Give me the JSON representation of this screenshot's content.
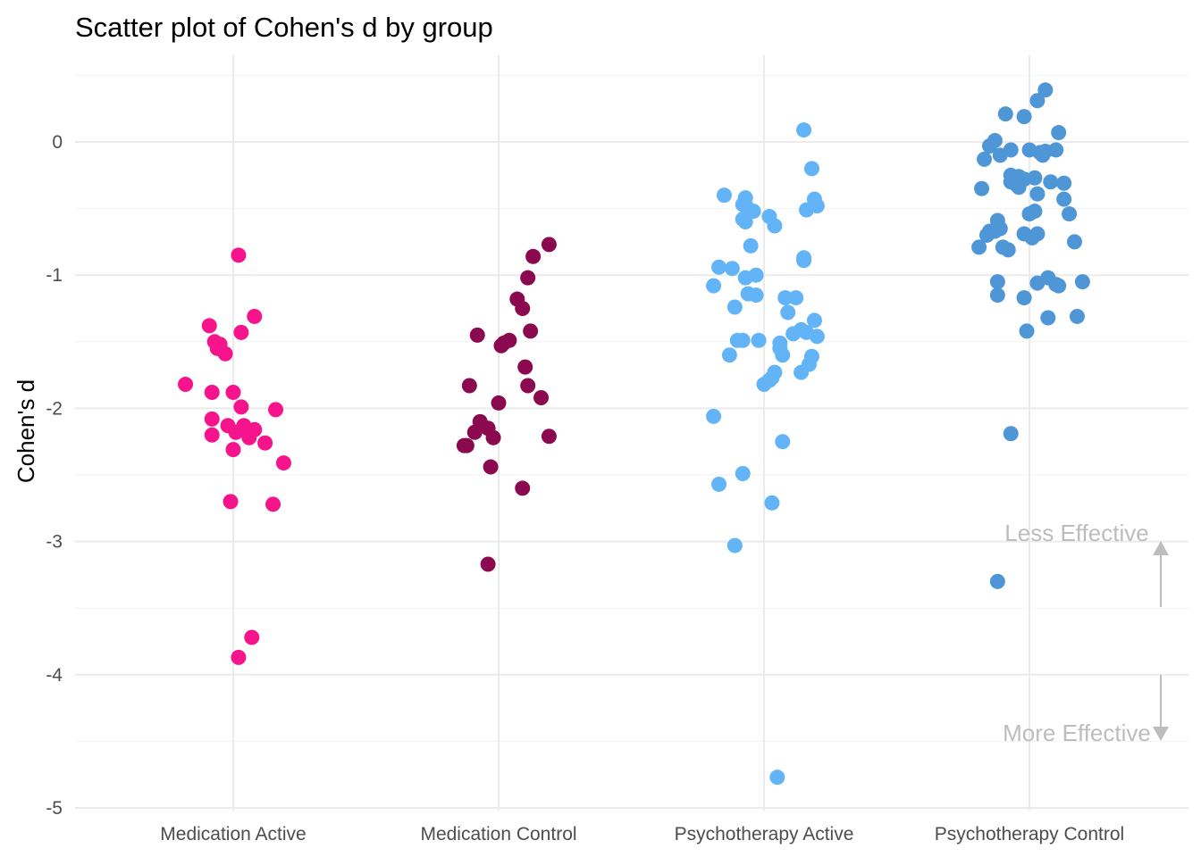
{
  "chart_data": {
    "type": "scatter",
    "title": "Scatter plot of Cohen's d by group",
    "xlabel": "",
    "ylabel": "Cohen's d",
    "ylim": [
      -5,
      0.5
    ],
    "yticks": [
      -5,
      -4,
      -3,
      -2,
      -1,
      0
    ],
    "grid": true,
    "categories": [
      "Medication Active",
      "Medication Control",
      "Psychotherapy Active",
      "Psychotherapy Control"
    ],
    "series": [
      {
        "category": "Medication Active",
        "color": "#f5148c",
        "points": [
          {
            "x": 0.02,
            "y": -0.85
          },
          {
            "x": -0.09,
            "y": -1.38
          },
          {
            "x": 0.08,
            "y": -1.31
          },
          {
            "x": 0.03,
            "y": -1.43
          },
          {
            "x": -0.07,
            "y": -1.5
          },
          {
            "x": -0.05,
            "y": -1.52
          },
          {
            "x": -0.06,
            "y": -1.55
          },
          {
            "x": -0.03,
            "y": -1.59
          },
          {
            "x": -0.18,
            "y": -1.82
          },
          {
            "x": -0.08,
            "y": -1.88
          },
          {
            "x": 0.0,
            "y": -1.88
          },
          {
            "x": 0.16,
            "y": -2.01
          },
          {
            "x": 0.03,
            "y": -1.99
          },
          {
            "x": -0.08,
            "y": -2.08
          },
          {
            "x": -0.02,
            "y": -2.13
          },
          {
            "x": 0.04,
            "y": -2.13
          },
          {
            "x": 0.08,
            "y": -2.16
          },
          {
            "x": 0.01,
            "y": -2.18
          },
          {
            "x": -0.08,
            "y": -2.2
          },
          {
            "x": 0.06,
            "y": -2.22
          },
          {
            "x": 0.12,
            "y": -2.26
          },
          {
            "x": 0.0,
            "y": -2.31
          },
          {
            "x": 0.19,
            "y": -2.41
          },
          {
            "x": -0.01,
            "y": -2.7
          },
          {
            "x": 0.15,
            "y": -2.72
          },
          {
            "x": 0.07,
            "y": -3.72
          },
          {
            "x": 0.02,
            "y": -3.87
          }
        ]
      },
      {
        "category": "Medication Control",
        "color": "#8b0a4f",
        "points": [
          {
            "x": 0.19,
            "y": -0.77
          },
          {
            "x": 0.13,
            "y": -0.86
          },
          {
            "x": 0.11,
            "y": -1.02
          },
          {
            "x": 0.07,
            "y": -1.18
          },
          {
            "x": 0.09,
            "y": -1.25
          },
          {
            "x": 0.12,
            "y": -1.42
          },
          {
            "x": -0.08,
            "y": -1.45
          },
          {
            "x": 0.04,
            "y": -1.49
          },
          {
            "x": 0.02,
            "y": -1.51
          },
          {
            "x": 0.01,
            "y": -1.53
          },
          {
            "x": 0.1,
            "y": -1.69
          },
          {
            "x": -0.11,
            "y": -1.83
          },
          {
            "x": 0.11,
            "y": -1.83
          },
          {
            "x": 0.16,
            "y": -1.92
          },
          {
            "x": 0.0,
            "y": -1.96
          },
          {
            "x": -0.07,
            "y": -2.1
          },
          {
            "x": -0.04,
            "y": -2.15
          },
          {
            "x": -0.09,
            "y": -2.18
          },
          {
            "x": -0.02,
            "y": -2.22
          },
          {
            "x": 0.19,
            "y": -2.21
          },
          {
            "x": -0.13,
            "y": -2.28
          },
          {
            "x": -0.12,
            "y": -2.28
          },
          {
            "x": -0.03,
            "y": -2.44
          },
          {
            "x": 0.09,
            "y": -2.6
          },
          {
            "x": -0.04,
            "y": -3.17
          }
        ]
      },
      {
        "category": "Psychotherapy Active",
        "color": "#63b4f7",
        "points": [
          {
            "x": 0.15,
            "y": 0.09
          },
          {
            "x": 0.18,
            "y": -0.2
          },
          {
            "x": -0.15,
            "y": -0.4
          },
          {
            "x": -0.07,
            "y": -0.42
          },
          {
            "x": 0.19,
            "y": -0.43
          },
          {
            "x": -0.08,
            "y": -0.47
          },
          {
            "x": -0.06,
            "y": -0.5
          },
          {
            "x": 0.2,
            "y": -0.48
          },
          {
            "x": 0.16,
            "y": -0.51
          },
          {
            "x": -0.04,
            "y": -0.52
          },
          {
            "x": 0.02,
            "y": -0.56
          },
          {
            "x": -0.08,
            "y": -0.58
          },
          {
            "x": -0.07,
            "y": -0.6
          },
          {
            "x": 0.04,
            "y": -0.63
          },
          {
            "x": -0.05,
            "y": -0.78
          },
          {
            "x": 0.15,
            "y": -0.87
          },
          {
            "x": 0.15,
            "y": -0.89
          },
          {
            "x": -0.17,
            "y": -0.94
          },
          {
            "x": -0.12,
            "y": -0.95
          },
          {
            "x": -0.07,
            "y": -1.02
          },
          {
            "x": -0.03,
            "y": -1.0
          },
          {
            "x": -0.19,
            "y": -1.08
          },
          {
            "x": -0.06,
            "y": -1.14
          },
          {
            "x": -0.03,
            "y": -1.15
          },
          {
            "x": 0.08,
            "y": -1.17
          },
          {
            "x": 0.12,
            "y": -1.17
          },
          {
            "x": -0.11,
            "y": -1.24
          },
          {
            "x": 0.09,
            "y": -1.28
          },
          {
            "x": 0.19,
            "y": -1.34
          },
          {
            "x": 0.14,
            "y": -1.41
          },
          {
            "x": 0.16,
            "y": -1.43
          },
          {
            "x": 0.11,
            "y": -1.44
          },
          {
            "x": 0.2,
            "y": -1.46
          },
          {
            "x": -0.1,
            "y": -1.49
          },
          {
            "x": -0.08,
            "y": -1.49
          },
          {
            "x": -0.02,
            "y": -1.49
          },
          {
            "x": 0.06,
            "y": -1.51
          },
          {
            "x": 0.06,
            "y": -1.55
          },
          {
            "x": -0.13,
            "y": -1.6
          },
          {
            "x": 0.07,
            "y": -1.6
          },
          {
            "x": 0.18,
            "y": -1.61
          },
          {
            "x": 0.17,
            "y": -1.67
          },
          {
            "x": 0.04,
            "y": -1.73
          },
          {
            "x": 0.14,
            "y": -1.73
          },
          {
            "x": 0.03,
            "y": -1.77
          },
          {
            "x": 0.02,
            "y": -1.79
          },
          {
            "x": 0.0,
            "y": -1.82
          },
          {
            "x": -0.19,
            "y": -2.06
          },
          {
            "x": 0.07,
            "y": -2.25
          },
          {
            "x": -0.17,
            "y": -2.57
          },
          {
            "x": -0.08,
            "y": -2.49
          },
          {
            "x": 0.03,
            "y": -2.71
          },
          {
            "x": -0.11,
            "y": -3.03
          },
          {
            "x": 0.05,
            "y": -4.77
          }
        ]
      },
      {
        "category": "Psychotherapy Control",
        "color": "#4f96d6",
        "points": [
          {
            "x": 0.06,
            "y": 0.39
          },
          {
            "x": 0.03,
            "y": 0.31
          },
          {
            "x": -0.09,
            "y": 0.21
          },
          {
            "x": -0.02,
            "y": 0.19
          },
          {
            "x": 0.11,
            "y": 0.07
          },
          {
            "x": -0.13,
            "y": 0.01
          },
          {
            "x": -0.15,
            "y": -0.03
          },
          {
            "x": -0.07,
            "y": -0.06
          },
          {
            "x": 0.0,
            "y": -0.06
          },
          {
            "x": 0.04,
            "y": -0.08
          },
          {
            "x": 0.06,
            "y": -0.07
          },
          {
            "x": 0.1,
            "y": -0.06
          },
          {
            "x": -0.11,
            "y": -0.1
          },
          {
            "x": 0.05,
            "y": -0.1
          },
          {
            "x": -0.17,
            "y": -0.13
          },
          {
            "x": -0.07,
            "y": -0.25
          },
          {
            "x": -0.04,
            "y": -0.26
          },
          {
            "x": -0.02,
            "y": -0.28
          },
          {
            "x": 0.02,
            "y": -0.27
          },
          {
            "x": -0.07,
            "y": -0.3
          },
          {
            "x": -0.05,
            "y": -0.32
          },
          {
            "x": 0.08,
            "y": -0.3
          },
          {
            "x": 0.13,
            "y": -0.31
          },
          {
            "x": -0.04,
            "y": -0.34
          },
          {
            "x": -0.18,
            "y": -0.35
          },
          {
            "x": 0.03,
            "y": -0.39
          },
          {
            "x": 0.13,
            "y": -0.43
          },
          {
            "x": 0.02,
            "y": -0.52
          },
          {
            "x": 0.0,
            "y": -0.54
          },
          {
            "x": 0.15,
            "y": -0.54
          },
          {
            "x": -0.12,
            "y": -0.59
          },
          {
            "x": -0.11,
            "y": -0.65
          },
          {
            "x": -0.13,
            "y": -0.67
          },
          {
            "x": -0.15,
            "y": -0.67
          },
          {
            "x": -0.16,
            "y": -0.7
          },
          {
            "x": -0.02,
            "y": -0.69
          },
          {
            "x": 0.03,
            "y": -0.69
          },
          {
            "x": 0.01,
            "y": -0.72
          },
          {
            "x": -0.1,
            "y": -0.79
          },
          {
            "x": -0.19,
            "y": -0.79
          },
          {
            "x": -0.08,
            "y": -0.81
          },
          {
            "x": 0.17,
            "y": -0.75
          },
          {
            "x": -0.12,
            "y": -1.05
          },
          {
            "x": 0.07,
            "y": -1.02
          },
          {
            "x": 0.1,
            "y": -1.07
          },
          {
            "x": 0.2,
            "y": -1.05
          },
          {
            "x": 0.03,
            "y": -1.06
          },
          {
            "x": 0.11,
            "y": -1.08
          },
          {
            "x": -0.12,
            "y": -1.15
          },
          {
            "x": -0.02,
            "y": -1.17
          },
          {
            "x": 0.07,
            "y": -1.32
          },
          {
            "x": 0.18,
            "y": -1.31
          },
          {
            "x": -0.01,
            "y": -1.42
          },
          {
            "x": -0.07,
            "y": -2.19
          },
          {
            "x": -0.12,
            "y": -3.3
          }
        ]
      }
    ],
    "annotations": {
      "less_effective": "Less Effective",
      "more_effective": "More Effective"
    }
  }
}
